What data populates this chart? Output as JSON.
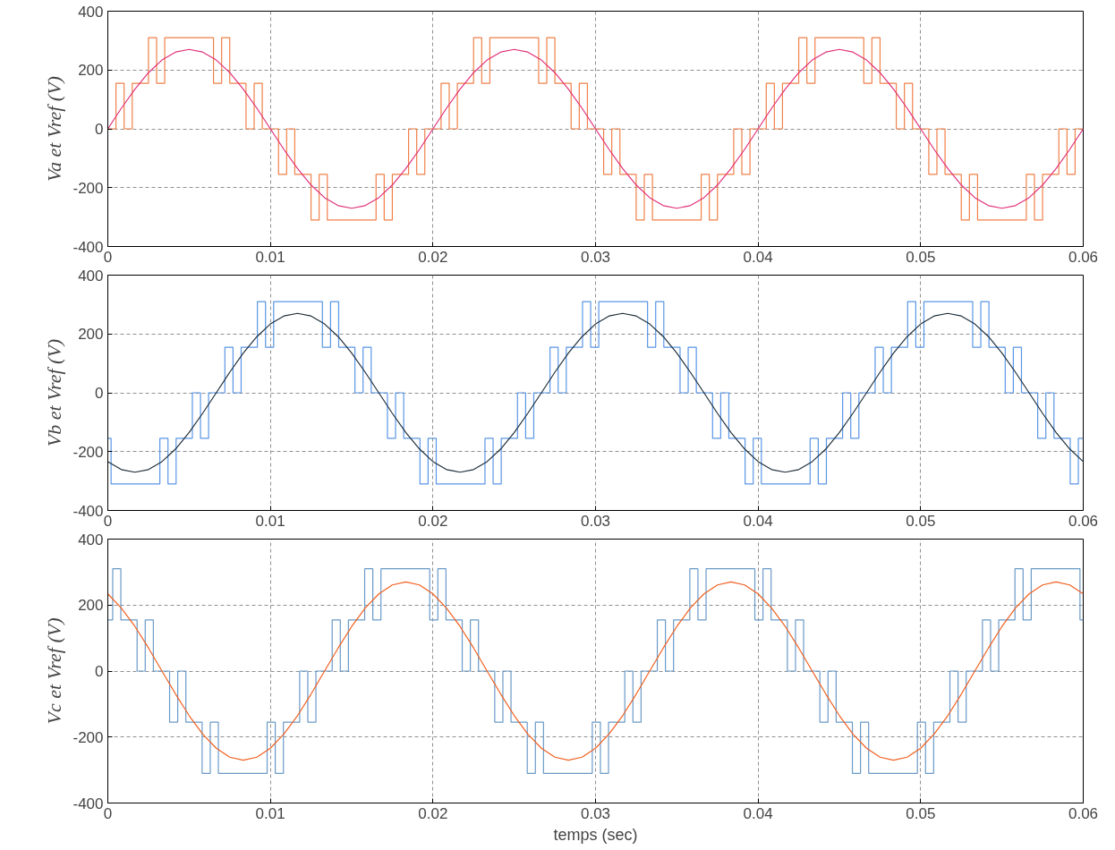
{
  "chart_data": [
    {
      "type": "line",
      "ylabel": "Va et Vref (V)",
      "xlim": [
        0,
        0.06
      ],
      "ylim": [
        -400,
        400
      ],
      "xticks": [
        0,
        0.01,
        0.02,
        0.03,
        0.04,
        0.05,
        0.06
      ],
      "yticks": [
        -400,
        -200,
        0,
        200,
        400
      ],
      "grid": true,
      "x": [
        0,
        0.00083,
        0.00167,
        0.0025,
        0.00333,
        0.00417,
        0.005,
        0.00583,
        0.00667,
        0.0075,
        0.00833,
        0.00917,
        0.01,
        0.01083,
        0.01167,
        0.0125,
        0.01333,
        0.01417,
        0.015,
        0.01583,
        0.01667,
        0.0175,
        0.01833,
        0.01917,
        0.02,
        0.02083,
        0.02167,
        0.0225,
        0.02333,
        0.02417,
        0.025,
        0.02583,
        0.02667,
        0.0275,
        0.02833,
        0.02917,
        0.03,
        0.03083,
        0.03167,
        0.0325,
        0.03333,
        0.03417,
        0.035,
        0.03583,
        0.03667,
        0.0375,
        0.03833,
        0.03917,
        0.04,
        0.04083,
        0.04167,
        0.0425,
        0.04333,
        0.04417,
        0.045,
        0.04583,
        0.04667,
        0.0475,
        0.04833,
        0.04917,
        0.05,
        0.05083,
        0.05167,
        0.0525,
        0.05333,
        0.05417,
        0.055,
        0.05583,
        0.05667,
        0.0575,
        0.05833,
        0.05917,
        0.06
      ],
      "series": [
        {
          "type": "step",
          "color": "#f08048",
          "x": [
            0,
            0.0005,
            0.001,
            0.0015,
            0.0025,
            0.003,
            0.0035,
            0.0065,
            0.007,
            0.0075,
            0.0085,
            0.009,
            0.0095,
            0.0105,
            0.011,
            0.0115,
            0.0125,
            0.013,
            0.0135,
            0.0165,
            0.017,
            0.0175,
            0.0185,
            0.019,
            0.0195,
            0.02,
            0.0205,
            0.021,
            0.0215,
            0.0225,
            0.023,
            0.0235,
            0.0265,
            0.027,
            0.0275,
            0.0285,
            0.029,
            0.0295,
            0.0305,
            0.031,
            0.0315,
            0.0325,
            0.033,
            0.0335,
            0.0365,
            0.037,
            0.0375,
            0.0385,
            0.039,
            0.0395,
            0.04,
            0.0405,
            0.041,
            0.0415,
            0.0425,
            0.043,
            0.0435,
            0.0465,
            0.047,
            0.0475,
            0.0485,
            0.049,
            0.0495,
            0.0505,
            0.051,
            0.0515,
            0.0525,
            0.053,
            0.0535,
            0.0565,
            0.057,
            0.0575,
            0.0585,
            0.059,
            0.0595,
            0.06
          ],
          "values": [
            0,
            155,
            0,
            155,
            310,
            155,
            310,
            155,
            310,
            155,
            0,
            155,
            0,
            -155,
            0,
            -155,
            -310,
            -155,
            -310,
            -155,
            -310,
            -155,
            0,
            -155,
            0,
            0,
            155,
            0,
            155,
            310,
            155,
            310,
            155,
            310,
            155,
            0,
            155,
            0,
            -155,
            0,
            -155,
            -310,
            -155,
            -310,
            -155,
            -310,
            -155,
            0,
            -155,
            0,
            0,
            155,
            0,
            155,
            310,
            155,
            310,
            155,
            310,
            155,
            0,
            155,
            0,
            -155,
            0,
            -155,
            -310,
            -155,
            -310,
            -155,
            -310,
            -155,
            0,
            -155,
            0,
            0
          ]
        },
        {
          "color": "#e0307a",
          "values": [
            0,
            70,
            135,
            191,
            234,
            261,
            270,
            261,
            234,
            191,
            135,
            70,
            0,
            -70,
            -135,
            -191,
            -234,
            -261,
            -270,
            -261,
            -234,
            -191,
            -135,
            -70,
            0,
            70,
            135,
            191,
            234,
            261,
            270,
            261,
            234,
            191,
            135,
            70,
            0,
            -70,
            -135,
            -191,
            -234,
            -261,
            -270,
            -261,
            -234,
            -191,
            -135,
            -70,
            0,
            70,
            135,
            191,
            234,
            261,
            270,
            261,
            234,
            191,
            135,
            70,
            0,
            -70,
            -135,
            -191,
            -234,
            -261,
            -270,
            -261,
            -234,
            -191,
            -135,
            -70,
            0
          ]
        }
      ]
    },
    {
      "type": "line",
      "ylabel": "Vb et Vref (V)",
      "xlim": [
        0,
        0.06
      ],
      "ylim": [
        -400,
        400
      ],
      "xticks": [
        0,
        0.01,
        0.02,
        0.03,
        0.04,
        0.05,
        0.06
      ],
      "yticks": [
        -400,
        -200,
        0,
        200,
        400
      ],
      "grid": true,
      "x": [
        0,
        0.00083,
        0.00167,
        0.0025,
        0.00333,
        0.00417,
        0.005,
        0.00583,
        0.00667,
        0.0075,
        0.00833,
        0.00917,
        0.01,
        0.01083,
        0.01167,
        0.0125,
        0.01333,
        0.01417,
        0.015,
        0.01583,
        0.01667,
        0.0175,
        0.01833,
        0.01917,
        0.02,
        0.02083,
        0.02167,
        0.0225,
        0.02333,
        0.02417,
        0.025,
        0.02583,
        0.02667,
        0.0275,
        0.02833,
        0.02917,
        0.03,
        0.03083,
        0.03167,
        0.0325,
        0.03333,
        0.03417,
        0.035,
        0.03583,
        0.03667,
        0.0375,
        0.03833,
        0.03917,
        0.04,
        0.04083,
        0.04167,
        0.0425,
        0.04333,
        0.04417,
        0.045,
        0.04583,
        0.04667,
        0.0475,
        0.04833,
        0.04917,
        0.05,
        0.05083,
        0.05167,
        0.0525,
        0.05333,
        0.05417,
        0.055,
        0.05583,
        0.05667,
        0.0575,
        0.05833,
        0.05917,
        0.06
      ],
      "series": [
        {
          "type": "step",
          "color": "#5a96e6",
          "x": [
            0,
            0.0002,
            0.0032,
            0.0037,
            0.0042,
            0.0052,
            0.0057,
            0.0062,
            0.0072,
            0.0077,
            0.0082,
            0.0092,
            0.0097,
            0.0102,
            0.0132,
            0.0137,
            0.0142,
            0.0152,
            0.0157,
            0.0162,
            0.0172,
            0.0177,
            0.0182,
            0.0192,
            0.0197,
            0.0202,
            0.0232,
            0.0237,
            0.0242,
            0.0252,
            0.0257,
            0.0262,
            0.0272,
            0.0277,
            0.0282,
            0.0292,
            0.0297,
            0.0302,
            0.0332,
            0.0337,
            0.0342,
            0.0352,
            0.0357,
            0.0362,
            0.0372,
            0.0377,
            0.0382,
            0.0392,
            0.0397,
            0.0402,
            0.0432,
            0.0437,
            0.0442,
            0.0452,
            0.0457,
            0.0462,
            0.0472,
            0.0477,
            0.0482,
            0.0492,
            0.0497,
            0.0502,
            0.0532,
            0.0537,
            0.0542,
            0.0552,
            0.0557,
            0.0562,
            0.0572,
            0.0577,
            0.0582,
            0.0592,
            0.0597,
            0.06
          ],
          "values": [
            -155,
            -310,
            -155,
            -310,
            -155,
            0,
            -155,
            0,
            155,
            0,
            155,
            310,
            155,
            310,
            155,
            310,
            155,
            0,
            155,
            0,
            -155,
            0,
            -155,
            -310,
            -155,
            -310,
            -155,
            -310,
            -155,
            0,
            -155,
            0,
            155,
            0,
            155,
            310,
            155,
            310,
            155,
            310,
            155,
            0,
            155,
            0,
            -155,
            0,
            -155,
            -310,
            -155,
            -310,
            -155,
            -310,
            -155,
            0,
            -155,
            0,
            155,
            0,
            155,
            310,
            155,
            310,
            155,
            310,
            155,
            0,
            155,
            0,
            -155,
            0,
            -155,
            -310,
            -155,
            -155
          ]
        },
        {
          "color": "#20303c",
          "values": [
            -234,
            -261,
            -270,
            -261,
            -234,
            -191,
            -135,
            -70,
            0,
            70,
            135,
            191,
            234,
            261,
            270,
            261,
            234,
            191,
            135,
            70,
            0,
            -70,
            -135,
            -191,
            -234,
            -261,
            -270,
            -261,
            -234,
            -191,
            -135,
            -70,
            0,
            70,
            135,
            191,
            234,
            261,
            270,
            261,
            234,
            191,
            135,
            70,
            0,
            -70,
            -135,
            -191,
            -234,
            -261,
            -270,
            -261,
            -234,
            -191,
            -135,
            -70,
            0,
            70,
            135,
            191,
            234,
            261,
            270,
            261,
            234,
            191,
            135,
            70,
            0,
            -70,
            -135,
            -191,
            -234
          ]
        }
      ]
    },
    {
      "type": "line",
      "ylabel": "Vc et Vref (V)",
      "xlabel": "temps (sec)",
      "xlim": [
        0,
        0.06
      ],
      "ylim": [
        -400,
        400
      ],
      "xticks": [
        0,
        0.01,
        0.02,
        0.03,
        0.04,
        0.05,
        0.06
      ],
      "yticks": [
        -400,
        -200,
        0,
        200,
        400
      ],
      "grid": true,
      "x": [
        0,
        0.00083,
        0.00167,
        0.0025,
        0.00333,
        0.00417,
        0.005,
        0.00583,
        0.00667,
        0.0075,
        0.00833,
        0.00917,
        0.01,
        0.01083,
        0.01167,
        0.0125,
        0.01333,
        0.01417,
        0.015,
        0.01583,
        0.01667,
        0.0175,
        0.01833,
        0.01917,
        0.02,
        0.02083,
        0.02167,
        0.0225,
        0.02333,
        0.02417,
        0.025,
        0.02583,
        0.02667,
        0.0275,
        0.02833,
        0.02917,
        0.03,
        0.03083,
        0.03167,
        0.0325,
        0.03333,
        0.03417,
        0.035,
        0.03583,
        0.03667,
        0.0375,
        0.03833,
        0.03917,
        0.04,
        0.04083,
        0.04167,
        0.0425,
        0.04333,
        0.04417,
        0.045,
        0.04583,
        0.04667,
        0.0475,
        0.04833,
        0.04917,
        0.05,
        0.05083,
        0.05167,
        0.0525,
        0.05333,
        0.05417,
        0.055,
        0.05583,
        0.05667,
        0.0575,
        0.05833,
        0.05917,
        0.06
      ],
      "series": [
        {
          "type": "step",
          "color": "#6a9ac8",
          "x": [
            0,
            0.0003,
            0.0008,
            0.0018,
            0.0023,
            0.0028,
            0.0038,
            0.0043,
            0.0048,
            0.0058,
            0.0063,
            0.0068,
            0.0098,
            0.0103,
            0.0108,
            0.0118,
            0.0123,
            0.0128,
            0.0138,
            0.0143,
            0.0148,
            0.0158,
            0.0163,
            0.0168,
            0.0198,
            0.0203,
            0.0208,
            0.0218,
            0.0223,
            0.0228,
            0.0238,
            0.0243,
            0.0248,
            0.0258,
            0.0263,
            0.0268,
            0.0298,
            0.0303,
            0.0308,
            0.0318,
            0.0323,
            0.0328,
            0.0338,
            0.0343,
            0.0348,
            0.0358,
            0.0363,
            0.0368,
            0.0398,
            0.0403,
            0.0408,
            0.0418,
            0.0423,
            0.0428,
            0.0438,
            0.0443,
            0.0448,
            0.0458,
            0.0463,
            0.0468,
            0.0498,
            0.0503,
            0.0508,
            0.0518,
            0.0523,
            0.0528,
            0.0538,
            0.0543,
            0.0548,
            0.0558,
            0.0563,
            0.0568,
            0.0598,
            0.06
          ],
          "values": [
            155,
            310,
            155,
            0,
            155,
            0,
            -155,
            0,
            -155,
            -310,
            -155,
            -310,
            -155,
            -310,
            -155,
            0,
            -155,
            0,
            155,
            0,
            155,
            310,
            155,
            310,
            155,
            310,
            155,
            0,
            155,
            0,
            -155,
            0,
            -155,
            -310,
            -155,
            -310,
            -155,
            -310,
            -155,
            0,
            -155,
            0,
            155,
            0,
            155,
            310,
            155,
            310,
            155,
            310,
            155,
            0,
            155,
            0,
            -155,
            0,
            -155,
            -310,
            -155,
            -310,
            -155,
            -310,
            -155,
            0,
            -155,
            0,
            155,
            0,
            155,
            310,
            155,
            310,
            155,
            155
          ]
        },
        {
          "color": "#f06020",
          "values": [
            234,
            191,
            135,
            70,
            0,
            -70,
            -135,
            -191,
            -234,
            -261,
            -270,
            -261,
            -234,
            -191,
            -135,
            -70,
            0,
            70,
            135,
            191,
            234,
            261,
            270,
            261,
            234,
            191,
            135,
            70,
            0,
            -70,
            -135,
            -191,
            -234,
            -261,
            -270,
            -261,
            -234,
            -191,
            -135,
            -70,
            0,
            70,
            135,
            191,
            234,
            261,
            270,
            261,
            234,
            191,
            135,
            70,
            0,
            -70,
            -135,
            -191,
            -234,
            -261,
            -270,
            -261,
            -234,
            -191,
            -135,
            -70,
            0,
            70,
            135,
            191,
            234,
            261,
            270,
            261,
            234
          ]
        }
      ]
    }
  ]
}
